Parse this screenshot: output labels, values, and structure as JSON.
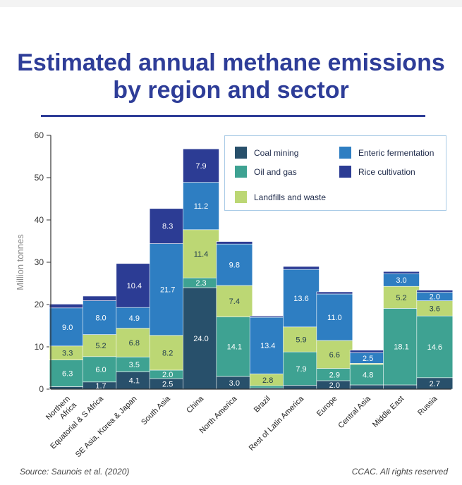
{
  "title": "Estimated annual methane emissions by region and sector",
  "source": "Source: Saunois et al. (2020)",
  "credit": "CCAC. All rights reserved",
  "colors": {
    "coal": "#28506b",
    "oilgas": "#3ea292",
    "landfills": "#bcd774",
    "enteric": "#2e7ec2",
    "rice": "#2c3c94",
    "title": "#2e3d98",
    "axis": "#333333"
  },
  "chart_data": {
    "type": "bar",
    "stacked": true,
    "title": "Estimated annual methane emissions by region and sector",
    "ylabel": "Million tonnes",
    "xlabel": "",
    "ylim": [
      0,
      60
    ],
    "yticks": [
      0,
      10,
      20,
      30,
      40,
      50,
      60
    ],
    "grid": false,
    "legend_position": "top-right",
    "categories": [
      "Northern Africa",
      "Equatorial & S Africa",
      "SE Asia, Korea & Japan",
      "South Asia",
      "China",
      "North America",
      "Brazil",
      "Rest of Latin America",
      "Europe",
      "Central Asia",
      "Middle East",
      "Russia"
    ],
    "series": [
      {
        "name": "Coal mining",
        "key": "coal",
        "values": [
          0.6,
          1.7,
          4.1,
          2.5,
          24.0,
          3.0,
          0.3,
          0.9,
          2.0,
          1.0,
          1.0,
          2.7
        ]
      },
      {
        "name": "Oil and gas",
        "key": "oilgas",
        "values": [
          6.3,
          6.0,
          3.5,
          2.0,
          2.3,
          14.1,
          0.5,
          7.9,
          2.9,
          4.8,
          18.1,
          14.6
        ]
      },
      {
        "name": "Landfills and waste",
        "key": "landfills",
        "values": [
          3.3,
          5.2,
          6.8,
          8.2,
          11.4,
          7.4,
          2.8,
          5.9,
          6.6,
          0.3,
          5.2,
          3.6
        ]
      },
      {
        "name": "Enteric fermentation",
        "key": "enteric",
        "values": [
          9.0,
          8.0,
          4.9,
          21.7,
          11.2,
          9.8,
          13.4,
          13.6,
          11.0,
          2.5,
          3.0,
          2.0
        ]
      },
      {
        "name": "Rice cultivation",
        "key": "rice",
        "values": [
          0.9,
          1.1,
          10.4,
          8.3,
          7.9,
          0.6,
          0.3,
          0.7,
          0.5,
          0.6,
          0.5,
          0.5
        ]
      }
    ],
    "data_labels": [
      [
        "",
        "1.7",
        "4.1",
        "2.5",
        "24.0",
        "3.0",
        "",
        "",
        "2.0",
        "",
        "",
        "2.7"
      ],
      [
        "6.3",
        "6.0",
        "3.5",
        "2.0",
        "2.3",
        "14.1",
        "",
        "7.9",
        "2.9",
        "4.8",
        "18.1",
        "14.6"
      ],
      [
        "3.3",
        "5.2",
        "6.8",
        "8.2",
        "11.4",
        "7.4",
        "2.8",
        "5.9",
        "6.6",
        "",
        "5.2",
        "3.6"
      ],
      [
        "9.0",
        "8.0",
        "4.9",
        "21.7",
        "11.2",
        "9.8",
        "13.4",
        "13.6",
        "11.0",
        "2.5",
        "3.0",
        "2.0"
      ],
      [
        "",
        "",
        "10.4",
        "8.3",
        "7.9",
        "",
        "",
        "",
        "",
        "",
        "",
        ""
      ]
    ]
  },
  "legend": [
    {
      "label": "Coal mining",
      "key": "coal"
    },
    {
      "label": "Enteric fermentation",
      "key": "enteric"
    },
    {
      "label": "Oil and gas",
      "key": "oilgas"
    },
    {
      "label": "Rice cultivation",
      "key": "rice"
    },
    {
      "label": "Landfills and waste",
      "key": "landfills"
    }
  ]
}
